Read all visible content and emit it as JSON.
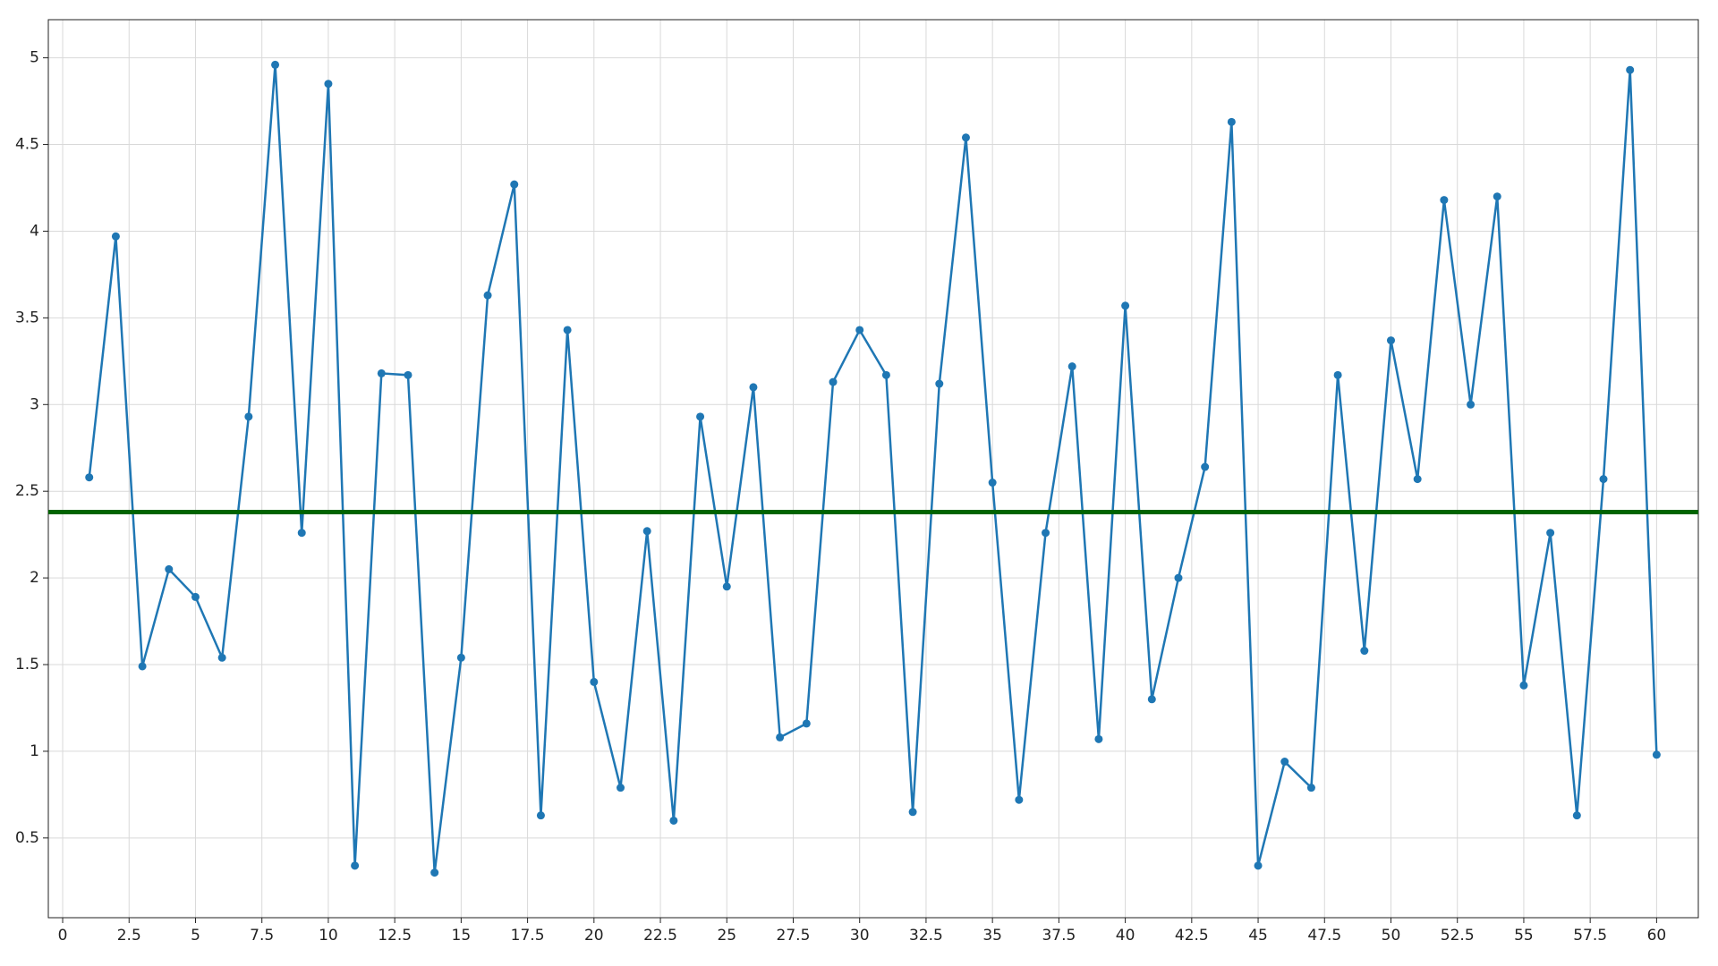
{
  "chart_data": {
    "type": "line",
    "x": [
      1,
      2,
      3,
      4,
      5,
      6,
      7,
      8,
      9,
      10,
      11,
      12,
      13,
      14,
      15,
      16,
      17,
      18,
      19,
      20,
      21,
      22,
      23,
      24,
      25,
      26,
      27,
      28,
      29,
      30,
      31,
      32,
      33,
      34,
      35,
      36,
      37,
      38,
      39,
      40,
      41,
      42,
      43,
      44,
      45,
      46,
      47,
      48,
      49,
      50,
      51,
      52,
      53,
      54,
      55,
      56,
      57,
      58,
      59,
      60
    ],
    "series": [
      {
        "color": "#1f77b4",
        "values": [
          2.58,
          3.97,
          1.49,
          2.05,
          1.89,
          1.54,
          2.93,
          4.96,
          2.26,
          4.85,
          0.34,
          3.18,
          3.17,
          0.3,
          1.54,
          3.63,
          4.27,
          0.63,
          3.43,
          1.4,
          0.79,
          2.27,
          0.6,
          2.93,
          1.95,
          3.1,
          1.08,
          1.16,
          3.13,
          3.43,
          3.17,
          0.65,
          3.12,
          4.54,
          2.55,
          0.72,
          2.26,
          3.22,
          1.07,
          3.57,
          1.3,
          2.0,
          2.64,
          4.63,
          0.34,
          0.94,
          0.79,
          3.17,
          1.58,
          3.37,
          2.57,
          4.18,
          3.0,
          4.2,
          1.38,
          2.26,
          0.63,
          2.57,
          4.93,
          0.98
        ]
      }
    ],
    "reference_line": {
      "value": 2.38,
      "color": "#006400"
    },
    "xlim": [
      -0.54,
      61.57
    ],
    "ylim": [
      0.04,
      5.22
    ],
    "xticks": [
      0,
      2.5,
      5,
      7.5,
      10,
      12.5,
      15,
      17.5,
      20,
      22.5,
      25,
      27.5,
      30,
      32.5,
      35,
      37.5,
      40,
      42.5,
      45,
      47.5,
      50,
      52.5,
      55,
      57.5,
      60
    ],
    "yticks": [
      0.5,
      1,
      1.5,
      2,
      2.5,
      3,
      3.5,
      4,
      4.5,
      5
    ],
    "grid": true
  }
}
